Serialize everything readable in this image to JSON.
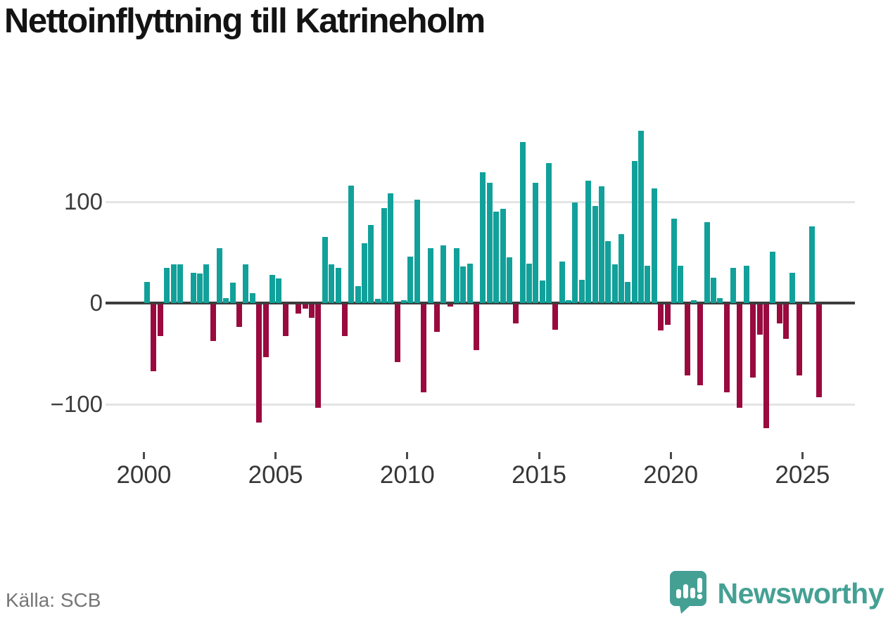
{
  "title": "Nettoinflyttning till Katrineholm",
  "source_label": "Källa: SCB",
  "brand": {
    "name": "Newsworthy",
    "logo_color": "#45a094",
    "logo_icon": "speech-bubble-bar-chart-exclamation"
  },
  "colors": {
    "positive_bar": "#11a19a",
    "negative_bar": "#9a0a3e",
    "gridline": "#e4e4e4",
    "zero_axis": "#3d3d3d",
    "axis_text": "#3c3c3c"
  },
  "chart_data": {
    "type": "bar",
    "title": "Nettoinflyttning till Katrineholm",
    "xlabel": "",
    "ylabel": "",
    "x_start": "2000Q1",
    "x_end": "2025Q3",
    "frequency": "quarterly",
    "ylim": [
      -130,
      180
    ],
    "grid": "horizontal",
    "yticks": [
      {
        "v": 100,
        "label": "100"
      },
      {
        "v": 0,
        "label": "0"
      },
      {
        "v": -100,
        "label": "−100"
      }
    ],
    "xticks": [
      {
        "year": 2000,
        "label": "2000"
      },
      {
        "year": 2005,
        "label": "2005"
      },
      {
        "year": 2010,
        "label": "2010"
      },
      {
        "year": 2015,
        "label": "2015"
      },
      {
        "year": 2020,
        "label": "2020"
      },
      {
        "year": 2025,
        "label": "2025"
      }
    ],
    "values": [
      21,
      -66,
      -31,
      35,
      38,
      38,
      0,
      30,
      29,
      38,
      -36,
      54,
      5,
      20,
      -22,
      38,
      10,
      -117,
      -52,
      28,
      24,
      -31,
      0,
      -9,
      -4,
      -13,
      -102,
      65,
      38,
      35,
      -31,
      116,
      17,
      59,
      77,
      4,
      94,
      108,
      -57,
      3,
      46,
      102,
      -87,
      54,
      -27,
      57,
      -2,
      54,
      36,
      39,
      -45,
      129,
      119,
      90,
      93,
      45,
      -19,
      159,
      39,
      119,
      22,
      138,
      -25,
      41,
      3,
      99,
      23,
      121,
      96,
      115,
      61,
      38,
      68,
      21,
      140,
      170,
      37,
      113,
      -26,
      -20,
      83,
      37,
      -70,
      3,
      -80,
      80,
      25,
      5,
      -87,
      35,
      -102,
      37,
      -72,
      -30,
      -122,
      51,
      -19,
      -34,
      30,
      -70,
      0,
      76,
      -92
    ]
  }
}
